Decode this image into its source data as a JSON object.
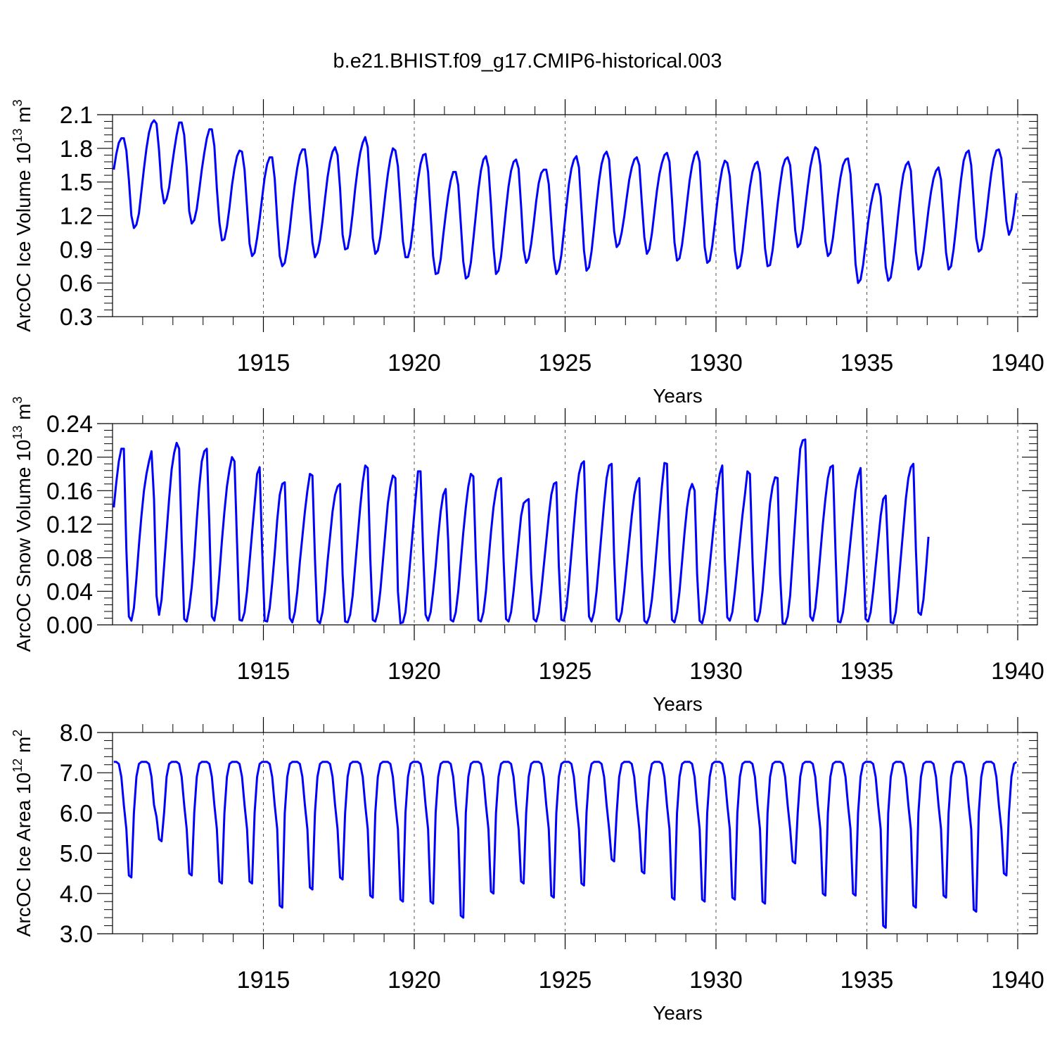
{
  "figure": {
    "title": "b.e21.BHIST.f09_g17.CMIP6-historical.003",
    "line_color": "#0000ff",
    "grid_color": "#555555",
    "axis_color": "#000000"
  },
  "chart_data": [
    {
      "type": "line",
      "id": "ice-volume",
      "ylabel": "ArcOC Ice Volume 10",
      "ylabel_exp": "13",
      "ylabel_unit": "m",
      "ylabel_unit_exp": "3",
      "xlabel": "Years",
      "xlim": [
        1910,
        1940
      ],
      "ylim": [
        0.3,
        2.1
      ],
      "x_ticks": [
        1915,
        1920,
        1925,
        1930,
        1935,
        1940
      ],
      "x_tick_labels": [
        "1915",
        "1920",
        "1925",
        "1930",
        "1935",
        "1940"
      ],
      "y_ticks": [
        0.3,
        0.6,
        0.9,
        1.2,
        1.5,
        1.8,
        2.1
      ],
      "y_tick_labels": [
        "0.3",
        "0.6",
        "0.9",
        "1.2",
        "1.5",
        "1.8",
        "2.1"
      ],
      "grid": "vertical-dashed",
      "start_year": 1910.0417,
      "values": [
        1.61,
        1.75,
        1.85,
        1.89,
        1.89,
        1.78,
        1.52,
        1.2,
        1.09,
        1.12,
        1.22,
        1.42,
        1.62,
        1.8,
        1.94,
        2.02,
        2.05,
        2.02,
        1.78,
        1.45,
        1.31,
        1.35,
        1.45,
        1.62,
        1.78,
        1.92,
        2.03,
        2.03,
        1.92,
        1.63,
        1.24,
        1.13,
        1.16,
        1.26,
        1.43,
        1.61,
        1.76,
        1.89,
        1.97,
        1.97,
        1.82,
        1.44,
        1.14,
        0.98,
        0.99,
        1.1,
        1.27,
        1.47,
        1.62,
        1.73,
        1.78,
        1.77,
        1.61,
        1.28,
        0.95,
        0.84,
        0.87,
        1.0,
        1.17,
        1.36,
        1.54,
        1.66,
        1.72,
        1.72,
        1.53,
        1.16,
        0.84,
        0.75,
        0.78,
        0.91,
        1.08,
        1.29,
        1.48,
        1.63,
        1.74,
        1.79,
        1.79,
        1.62,
        1.26,
        0.96,
        0.83,
        0.87,
        0.98,
        1.15,
        1.35,
        1.54,
        1.68,
        1.77,
        1.81,
        1.74,
        1.44,
        1.03,
        0.9,
        0.91,
        1.03,
        1.22,
        1.44,
        1.62,
        1.76,
        1.85,
        1.9,
        1.81,
        1.41,
        1.0,
        0.86,
        0.89,
        1.01,
        1.19,
        1.39,
        1.57,
        1.71,
        1.8,
        1.78,
        1.64,
        1.31,
        0.97,
        0.83,
        0.83,
        0.92,
        1.1,
        1.32,
        1.52,
        1.66,
        1.74,
        1.75,
        1.59,
        1.22,
        0.84,
        0.68,
        0.69,
        0.81,
        1.02,
        1.21,
        1.38,
        1.51,
        1.59,
        1.59,
        1.47,
        1.13,
        0.79,
        0.64,
        0.66,
        0.78,
        0.99,
        1.21,
        1.43,
        1.6,
        1.7,
        1.73,
        1.63,
        1.3,
        0.92,
        0.68,
        0.71,
        0.83,
        1.04,
        1.26,
        1.46,
        1.6,
        1.68,
        1.7,
        1.62,
        1.28,
        0.9,
        0.78,
        0.82,
        0.95,
        1.13,
        1.33,
        1.49,
        1.58,
        1.61,
        1.61,
        1.48,
        1.14,
        0.82,
        0.68,
        0.72,
        0.85,
        1.06,
        1.28,
        1.48,
        1.62,
        1.7,
        1.73,
        1.63,
        1.26,
        0.89,
        0.71,
        0.74,
        0.88,
        1.09,
        1.31,
        1.51,
        1.66,
        1.74,
        1.77,
        1.7,
        1.38,
        1.06,
        0.92,
        0.95,
        1.05,
        1.19,
        1.36,
        1.52,
        1.63,
        1.7,
        1.72,
        1.65,
        1.32,
        1.01,
        0.86,
        0.9,
        1.04,
        1.23,
        1.42,
        1.57,
        1.67,
        1.74,
        1.76,
        1.68,
        1.34,
        0.96,
        0.8,
        0.82,
        0.94,
        1.12,
        1.32,
        1.51,
        1.65,
        1.74,
        1.77,
        1.68,
        1.28,
        0.92,
        0.78,
        0.8,
        0.93,
        1.12,
        1.32,
        1.49,
        1.62,
        1.69,
        1.67,
        1.55,
        1.22,
        0.89,
        0.73,
        0.75,
        0.88,
        1.08,
        1.28,
        1.46,
        1.59,
        1.66,
        1.68,
        1.58,
        1.26,
        0.91,
        0.75,
        0.76,
        0.89,
        1.09,
        1.3,
        1.48,
        1.63,
        1.7,
        1.72,
        1.65,
        1.38,
        1.07,
        0.92,
        0.95,
        1.08,
        1.27,
        1.46,
        1.63,
        1.74,
        1.81,
        1.79,
        1.65,
        1.31,
        0.97,
        0.84,
        0.87,
        1.0,
        1.19,
        1.38,
        1.54,
        1.65,
        1.7,
        1.71,
        1.57,
        1.19,
        0.77,
        0.6,
        0.63,
        0.76,
        0.95,
        1.14,
        1.29,
        1.4,
        1.48,
        1.48,
        1.37,
        1.06,
        0.74,
        0.62,
        0.65,
        0.8,
        1.0,
        1.22,
        1.42,
        1.57,
        1.65,
        1.68,
        1.6,
        1.23,
        0.88,
        0.72,
        0.75,
        0.88,
        1.06,
        1.25,
        1.41,
        1.53,
        1.6,
        1.63,
        1.52,
        1.2,
        0.87,
        0.72,
        0.75,
        0.9,
        1.1,
        1.33,
        1.53,
        1.69,
        1.76,
        1.78,
        1.65,
        1.32,
        1.0,
        0.88,
        0.9,
        1.02,
        1.2,
        1.4,
        1.58,
        1.71,
        1.78,
        1.79,
        1.71,
        1.42,
        1.15,
        1.03,
        1.08,
        1.22,
        1.4
      ]
    },
    {
      "type": "line",
      "id": "snow-volume",
      "ylabel": "ArcOC Snow Volume 10",
      "ylabel_exp": "13",
      "ylabel_unit": "m",
      "ylabel_unit_exp": "3",
      "xlabel": "Years",
      "xlim": [
        1910,
        1940
      ],
      "ylim": [
        0.0,
        0.24
      ],
      "x_ticks": [
        1915,
        1920,
        1925,
        1930,
        1935,
        1940
      ],
      "x_tick_labels": [
        "1915",
        "1920",
        "1925",
        "1930",
        "1935",
        "1940"
      ],
      "y_ticks": [
        0.0,
        0.04,
        0.08,
        0.12,
        0.16,
        0.2,
        0.24
      ],
      "y_tick_labels": [
        "0.00",
        "0.04",
        "0.08",
        "0.12",
        "0.16",
        "0.20",
        "0.24"
      ],
      "grid": "vertical-dashed",
      "start_year": 1910.0417,
      "values": [
        0.14,
        0.17,
        0.195,
        0.21,
        0.21,
        0.09,
        0.01,
        0.005,
        0.02,
        0.055,
        0.095,
        0.13,
        0.16,
        0.18,
        0.195,
        0.207,
        0.15,
        0.035,
        0.012,
        0.03,
        0.07,
        0.11,
        0.15,
        0.185,
        0.205,
        0.217,
        0.21,
        0.1,
        0.007,
        0.004,
        0.02,
        0.045,
        0.08,
        0.125,
        0.165,
        0.195,
        0.207,
        0.21,
        0.12,
        0.01,
        0.005,
        0.025,
        0.06,
        0.1,
        0.135,
        0.165,
        0.185,
        0.2,
        0.195,
        0.1,
        0.006,
        0.005,
        0.015,
        0.04,
        0.075,
        0.11,
        0.145,
        0.18,
        0.188,
        0.09,
        0.005,
        0.004,
        0.02,
        0.05,
        0.085,
        0.125,
        0.155,
        0.168,
        0.17,
        0.08,
        0.008,
        0.003,
        0.015,
        0.04,
        0.075,
        0.105,
        0.135,
        0.16,
        0.18,
        0.178,
        0.08,
        0.005,
        0.002,
        0.015,
        0.04,
        0.075,
        0.105,
        0.135,
        0.155,
        0.165,
        0.168,
        0.06,
        0.004,
        0.003,
        0.012,
        0.035,
        0.07,
        0.105,
        0.14,
        0.17,
        0.19,
        0.187,
        0.08,
        0.006,
        0.004,
        0.015,
        0.04,
        0.075,
        0.11,
        0.145,
        0.165,
        0.178,
        0.175,
        0.04,
        0.002,
        0.003,
        0.015,
        0.045,
        0.08,
        0.115,
        0.15,
        0.183,
        0.183,
        0.09,
        0.012,
        0.005,
        0.015,
        0.04,
        0.07,
        0.105,
        0.135,
        0.155,
        0.162,
        0.1,
        0.006,
        0.004,
        0.015,
        0.04,
        0.075,
        0.11,
        0.14,
        0.165,
        0.18,
        0.177,
        0.08,
        0.006,
        0.004,
        0.015,
        0.04,
        0.075,
        0.11,
        0.14,
        0.16,
        0.173,
        0.175,
        0.08,
        0.007,
        0.004,
        0.015,
        0.04,
        0.07,
        0.1,
        0.13,
        0.145,
        0.148,
        0.15,
        0.06,
        0.007,
        0.004,
        0.015,
        0.04,
        0.07,
        0.1,
        0.13,
        0.155,
        0.168,
        0.17,
        0.07,
        0.006,
        0.005,
        0.02,
        0.05,
        0.085,
        0.12,
        0.155,
        0.18,
        0.192,
        0.195,
        0.09,
        0.01,
        0.004,
        0.015,
        0.04,
        0.075,
        0.11,
        0.145,
        0.175,
        0.19,
        0.192,
        0.08,
        0.007,
        0.004,
        0.015,
        0.04,
        0.07,
        0.1,
        0.13,
        0.155,
        0.17,
        0.175,
        0.07,
        0.005,
        0.002,
        0.01,
        0.03,
        0.06,
        0.095,
        0.13,
        0.165,
        0.193,
        0.192,
        0.08,
        0.006,
        0.003,
        0.015,
        0.04,
        0.075,
        0.11,
        0.14,
        0.16,
        0.168,
        0.16,
        0.06,
        0.005,
        0.002,
        0.015,
        0.04,
        0.07,
        0.1,
        0.13,
        0.16,
        0.18,
        0.19,
        0.08,
        0.009,
        0.005,
        0.015,
        0.04,
        0.07,
        0.1,
        0.13,
        0.155,
        0.183,
        0.18,
        0.08,
        0.006,
        0.004,
        0.015,
        0.04,
        0.075,
        0.11,
        0.145,
        0.165,
        0.176,
        0.175,
        0.06,
        0.002,
        0.001,
        0.01,
        0.035,
        0.08,
        0.125,
        0.17,
        0.21,
        0.22,
        0.221,
        0.11,
        0.01,
        0.005,
        0.02,
        0.05,
        0.085,
        0.12,
        0.15,
        0.175,
        0.188,
        0.19,
        0.09,
        0.004,
        0.003,
        0.015,
        0.04,
        0.07,
        0.1,
        0.13,
        0.16,
        0.178,
        0.187,
        0.09,
        0.007,
        0.004,
        0.015,
        0.04,
        0.07,
        0.1,
        0.13,
        0.15,
        0.154,
        0.08,
        0.003,
        0.002,
        0.015,
        0.045,
        0.08,
        0.115,
        0.15,
        0.175,
        0.188,
        0.192,
        0.09,
        0.015,
        0.012,
        0.03,
        0.065,
        0.105
      ]
    },
    {
      "type": "line",
      "id": "ice-area",
      "ylabel": "ArcOC Ice Area 10",
      "ylabel_exp": "12",
      "ylabel_unit": "m",
      "ylabel_unit_exp": "2",
      "xlabel": "Years",
      "xlim": [
        1910,
        1940
      ],
      "ylim": [
        3.0,
        8.0
      ],
      "x_ticks": [
        1915,
        1920,
        1925,
        1930,
        1935,
        1940
      ],
      "x_tick_labels": [
        "1915",
        "1920",
        "1925",
        "1930",
        "1935",
        "1940"
      ],
      "y_ticks": [
        3.0,
        4.0,
        5.0,
        6.0,
        7.0,
        8.0
      ],
      "y_tick_labels": [
        "3.0",
        "4.0",
        "5.0",
        "6.0",
        "7.0",
        "8.0"
      ],
      "grid": "vertical-dashed",
      "start_year": 1910.0417,
      "minima": [
        4.4,
        5.3,
        4.45,
        4.25,
        4.25,
        3.65,
        4.1,
        4.35,
        3.9,
        3.8,
        3.75,
        3.4,
        4.0,
        4.25,
        3.9,
        4.2,
        4.8,
        4.5,
        3.85,
        3.8,
        3.85,
        3.75,
        4.75,
        3.95,
        3.95,
        3.15,
        3.65,
        3.9,
        3.55,
        4.45
      ]
    }
  ]
}
